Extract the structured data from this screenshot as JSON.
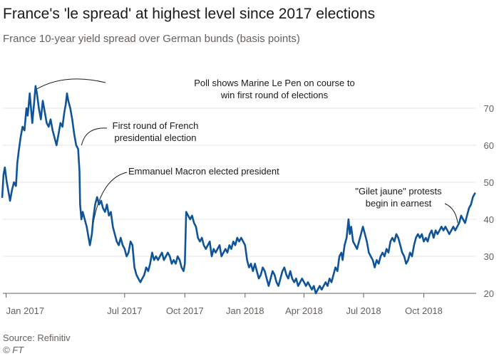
{
  "header": {
    "title": "France's 'le spread' at highest level since 2017 elections",
    "subtitle": "France 10-year yield spread over German bunds (basis points)"
  },
  "footer": {
    "source": "Source: Refinitiv",
    "credit": "© FT"
  },
  "colors": {
    "line": "#0f5499",
    "grid": "#e9e6e3",
    "baseline": "#66605c",
    "text": "#33302e"
  },
  "chart_data": {
    "type": "line",
    "ylim": [
      20,
      80
    ],
    "xlim": [
      "2016-12-27",
      "2018-12-20"
    ],
    "yticks": [
      {
        "value": 20,
        "label": "20"
      },
      {
        "value": 30,
        "label": "30"
      },
      {
        "value": 40,
        "label": "40"
      },
      {
        "value": 50,
        "label": "50"
      },
      {
        "value": 60,
        "label": "60"
      },
      {
        "value": 70,
        "label": "70"
      }
    ],
    "xticks": [
      {
        "date": "2017-01-01",
        "label": "Jan 2017"
      },
      {
        "date": "2017-07-01",
        "label": "Jul 2017"
      },
      {
        "date": "2017-10-01",
        "label": "Oct 2017"
      },
      {
        "date": "2018-01-01",
        "label": "Jan 2018"
      },
      {
        "date": "2018-04-01",
        "label": "Apr 2018"
      },
      {
        "date": "2018-07-01",
        "label": "Jul 2018"
      },
      {
        "date": "2018-10-01",
        "label": "Oct 2018"
      }
    ],
    "grid": true,
    "series": [
      {
        "points": [
          [
            "2016-12-26",
            46
          ],
          [
            "2016-12-28",
            52
          ],
          [
            "2016-12-30",
            54
          ],
          [
            "2017-01-02",
            50
          ],
          [
            "2017-01-05",
            47
          ],
          [
            "2017-01-07",
            45
          ],
          [
            "2017-01-10",
            48
          ],
          [
            "2017-01-13",
            50
          ],
          [
            "2017-01-16",
            49
          ],
          [
            "2017-01-18",
            55
          ],
          [
            "2017-01-20",
            58
          ],
          [
            "2017-01-23",
            62
          ],
          [
            "2017-01-26",
            65
          ],
          [
            "2017-01-29",
            64
          ],
          [
            "2017-02-01",
            70
          ],
          [
            "2017-02-03",
            68
          ],
          [
            "2017-02-06",
            74
          ],
          [
            "2017-02-08",
            70
          ],
          [
            "2017-02-10",
            66
          ],
          [
            "2017-02-13",
            72
          ],
          [
            "2017-02-15",
            76
          ],
          [
            "2017-02-17",
            74
          ],
          [
            "2017-02-20",
            70
          ],
          [
            "2017-02-23",
            67
          ],
          [
            "2017-02-26",
            72
          ],
          [
            "2017-03-01",
            69
          ],
          [
            "2017-03-04",
            66
          ],
          [
            "2017-03-07",
            65
          ],
          [
            "2017-03-10",
            67
          ],
          [
            "2017-03-13",
            64
          ],
          [
            "2017-03-16",
            62
          ],
          [
            "2017-03-19",
            60
          ],
          [
            "2017-03-22",
            63
          ],
          [
            "2017-03-25",
            66
          ],
          [
            "2017-03-28",
            65
          ],
          [
            "2017-03-31",
            69
          ],
          [
            "2017-04-02",
            71
          ],
          [
            "2017-04-04",
            74
          ],
          [
            "2017-04-06",
            72
          ],
          [
            "2017-04-09",
            70
          ],
          [
            "2017-04-12",
            67
          ],
          [
            "2017-04-15",
            63
          ],
          [
            "2017-04-18",
            60
          ],
          [
            "2017-04-21",
            59
          ],
          [
            "2017-04-23",
            53
          ],
          [
            "2017-04-24",
            44
          ],
          [
            "2017-04-26",
            40
          ],
          [
            "2017-04-28",
            42
          ],
          [
            "2017-05-01",
            40
          ],
          [
            "2017-05-04",
            38
          ],
          [
            "2017-05-07",
            35
          ],
          [
            "2017-05-09",
            33
          ],
          [
            "2017-05-12",
            36
          ],
          [
            "2017-05-14",
            40
          ],
          [
            "2017-05-17",
            44
          ],
          [
            "2017-05-20",
            46
          ],
          [
            "2017-05-23",
            44
          ],
          [
            "2017-05-26",
            45
          ],
          [
            "2017-05-29",
            43
          ],
          [
            "2017-06-01",
            42
          ],
          [
            "2017-06-04",
            44
          ],
          [
            "2017-06-07",
            41
          ],
          [
            "2017-06-10",
            42
          ],
          [
            "2017-06-13",
            38
          ],
          [
            "2017-06-16",
            36
          ],
          [
            "2017-06-19",
            34
          ],
          [
            "2017-06-22",
            33
          ],
          [
            "2017-06-25",
            35
          ],
          [
            "2017-06-28",
            33
          ],
          [
            "2017-07-01",
            32
          ],
          [
            "2017-07-04",
            30
          ],
          [
            "2017-07-07",
            31
          ],
          [
            "2017-07-10",
            34
          ],
          [
            "2017-07-13",
            33
          ],
          [
            "2017-07-16",
            27
          ],
          [
            "2017-07-19",
            25
          ],
          [
            "2017-07-22",
            24
          ],
          [
            "2017-07-25",
            23
          ],
          [
            "2017-07-28",
            24
          ],
          [
            "2017-07-31",
            25
          ],
          [
            "2017-08-03",
            27
          ],
          [
            "2017-08-06",
            26
          ],
          [
            "2017-08-09",
            28
          ],
          [
            "2017-08-12",
            31
          ],
          [
            "2017-08-15",
            29
          ],
          [
            "2017-08-18",
            30
          ],
          [
            "2017-08-21",
            29
          ],
          [
            "2017-08-24",
            30
          ],
          [
            "2017-08-27",
            31
          ],
          [
            "2017-08-30",
            29
          ],
          [
            "2017-09-02",
            30
          ],
          [
            "2017-09-05",
            31
          ],
          [
            "2017-09-08",
            30
          ],
          [
            "2017-09-11",
            28
          ],
          [
            "2017-09-14",
            29
          ],
          [
            "2017-09-17",
            28
          ],
          [
            "2017-09-20",
            30
          ],
          [
            "2017-09-23",
            29
          ],
          [
            "2017-09-26",
            27
          ],
          [
            "2017-09-29",
            26
          ],
          [
            "2017-10-01",
            28
          ],
          [
            "2017-10-03",
            42
          ],
          [
            "2017-10-06",
            41
          ],
          [
            "2017-10-09",
            40
          ],
          [
            "2017-10-12",
            41
          ],
          [
            "2017-10-15",
            39
          ],
          [
            "2017-10-18",
            38
          ],
          [
            "2017-10-21",
            35
          ],
          [
            "2017-10-24",
            34
          ],
          [
            "2017-10-27",
            35
          ],
          [
            "2017-10-30",
            33
          ],
          [
            "2017-11-02",
            32
          ],
          [
            "2017-11-05",
            33
          ],
          [
            "2017-11-08",
            34
          ],
          [
            "2017-11-11",
            30
          ],
          [
            "2017-11-14",
            32
          ],
          [
            "2017-11-17",
            31
          ],
          [
            "2017-11-20",
            32
          ],
          [
            "2017-11-23",
            33
          ],
          [
            "2017-11-26",
            30
          ],
          [
            "2017-11-29",
            31
          ],
          [
            "2017-12-02",
            32
          ],
          [
            "2017-12-05",
            31
          ],
          [
            "2017-12-08",
            33
          ],
          [
            "2017-12-11",
            32
          ],
          [
            "2017-12-14",
            34
          ],
          [
            "2017-12-17",
            33
          ],
          [
            "2017-12-20",
            35
          ],
          [
            "2017-12-23",
            34
          ],
          [
            "2017-12-26",
            35
          ],
          [
            "2017-12-29",
            34
          ],
          [
            "2018-01-01",
            33
          ],
          [
            "2018-01-04",
            29
          ],
          [
            "2018-01-07",
            27
          ],
          [
            "2018-01-10",
            28
          ],
          [
            "2018-01-13",
            26
          ],
          [
            "2018-01-16",
            28
          ],
          [
            "2018-01-19",
            26
          ],
          [
            "2018-01-22",
            24
          ],
          [
            "2018-01-25",
            25
          ],
          [
            "2018-01-28",
            27
          ],
          [
            "2018-01-31",
            26
          ],
          [
            "2018-02-03",
            24
          ],
          [
            "2018-02-06",
            22
          ],
          [
            "2018-02-09",
            24
          ],
          [
            "2018-02-12",
            26
          ],
          [
            "2018-02-15",
            25
          ],
          [
            "2018-02-18",
            23
          ],
          [
            "2018-02-21",
            22
          ],
          [
            "2018-02-24",
            24
          ],
          [
            "2018-02-27",
            26
          ],
          [
            "2018-03-02",
            27
          ],
          [
            "2018-03-05",
            25
          ],
          [
            "2018-03-08",
            24
          ],
          [
            "2018-03-11",
            26
          ],
          [
            "2018-03-14",
            24
          ],
          [
            "2018-03-17",
            23
          ],
          [
            "2018-03-20",
            24
          ],
          [
            "2018-03-23",
            22
          ],
          [
            "2018-03-26",
            23
          ],
          [
            "2018-03-29",
            24
          ],
          [
            "2018-04-01",
            23
          ],
          [
            "2018-04-04",
            22
          ],
          [
            "2018-04-07",
            23
          ],
          [
            "2018-04-10",
            22
          ],
          [
            "2018-04-13",
            21
          ],
          [
            "2018-04-16",
            22
          ],
          [
            "2018-04-19",
            20
          ],
          [
            "2018-04-22",
            21
          ],
          [
            "2018-04-25",
            22
          ],
          [
            "2018-04-28",
            21
          ],
          [
            "2018-05-01",
            22
          ],
          [
            "2018-05-04",
            23
          ],
          [
            "2018-05-07",
            22
          ],
          [
            "2018-05-10",
            24
          ],
          [
            "2018-05-13",
            23
          ],
          [
            "2018-05-16",
            25
          ],
          [
            "2018-05-19",
            27
          ],
          [
            "2018-05-22",
            26
          ],
          [
            "2018-05-25",
            30
          ],
          [
            "2018-05-28",
            31
          ],
          [
            "2018-05-30",
            29
          ],
          [
            "2018-06-02",
            33
          ],
          [
            "2018-06-05",
            35
          ],
          [
            "2018-06-08",
            40
          ],
          [
            "2018-06-10",
            36
          ],
          [
            "2018-06-12",
            38
          ],
          [
            "2018-06-15",
            34
          ],
          [
            "2018-06-18",
            33
          ],
          [
            "2018-06-21",
            32
          ],
          [
            "2018-06-24",
            34
          ],
          [
            "2018-06-27",
            36
          ],
          [
            "2018-06-30",
            38
          ],
          [
            "2018-07-03",
            36
          ],
          [
            "2018-07-06",
            34
          ],
          [
            "2018-07-09",
            31
          ],
          [
            "2018-07-12",
            30
          ],
          [
            "2018-07-15",
            29
          ],
          [
            "2018-07-18",
            27
          ],
          [
            "2018-07-21",
            29
          ],
          [
            "2018-07-24",
            28
          ],
          [
            "2018-07-27",
            30
          ],
          [
            "2018-07-30",
            31
          ],
          [
            "2018-08-02",
            30
          ],
          [
            "2018-08-05",
            32
          ],
          [
            "2018-08-08",
            31
          ],
          [
            "2018-08-11",
            34
          ],
          [
            "2018-08-14",
            35
          ],
          [
            "2018-08-17",
            34
          ],
          [
            "2018-08-20",
            36
          ],
          [
            "2018-08-23",
            35
          ],
          [
            "2018-08-26",
            33
          ],
          [
            "2018-08-29",
            31
          ],
          [
            "2018-09-01",
            30
          ],
          [
            "2018-09-04",
            28
          ],
          [
            "2018-09-07",
            29
          ],
          [
            "2018-09-10",
            31
          ],
          [
            "2018-09-13",
            30
          ],
          [
            "2018-09-16",
            33
          ],
          [
            "2018-09-19",
            35
          ],
          [
            "2018-09-22",
            36
          ],
          [
            "2018-09-25",
            35
          ],
          [
            "2018-09-28",
            36
          ],
          [
            "2018-10-01",
            34
          ],
          [
            "2018-10-04",
            35
          ],
          [
            "2018-10-07",
            34
          ],
          [
            "2018-10-10",
            36
          ],
          [
            "2018-10-13",
            37
          ],
          [
            "2018-10-16",
            35
          ],
          [
            "2018-10-19",
            37
          ],
          [
            "2018-10-22",
            36
          ],
          [
            "2018-10-25",
            37
          ],
          [
            "2018-10-28",
            38
          ],
          [
            "2018-10-31",
            37
          ],
          [
            "2018-11-03",
            38
          ],
          [
            "2018-11-06",
            37
          ],
          [
            "2018-11-09",
            36
          ],
          [
            "2018-11-12",
            37
          ],
          [
            "2018-11-15",
            38
          ],
          [
            "2018-11-18",
            37
          ],
          [
            "2018-11-21",
            38
          ],
          [
            "2018-11-24",
            39
          ],
          [
            "2018-11-27",
            41
          ],
          [
            "2018-11-30",
            40
          ],
          [
            "2018-12-03",
            39
          ],
          [
            "2018-12-06",
            41
          ],
          [
            "2018-12-09",
            43
          ],
          [
            "2018-12-12",
            44
          ],
          [
            "2018-12-15",
            46
          ],
          [
            "2018-12-18",
            47
          ]
        ]
      }
    ],
    "annotations": [
      {
        "lines": [
          "Poll shows Marine Le Pen on course to",
          "win first round of elections"
        ],
        "date": "2017-02-15",
        "value": 75
      },
      {
        "lines": [
          "First round of French",
          "presidential election"
        ],
        "date": "2017-04-24",
        "value": 60
      },
      {
        "lines": [
          "Emmanuel Macron elected president"
        ],
        "date": "2017-05-09",
        "value": 35
      },
      {
        "lines": [
          "\"Gilet jaune\" protests",
          "begin in earnest"
        ],
        "date": "2018-11-24",
        "value": 39
      }
    ]
  }
}
